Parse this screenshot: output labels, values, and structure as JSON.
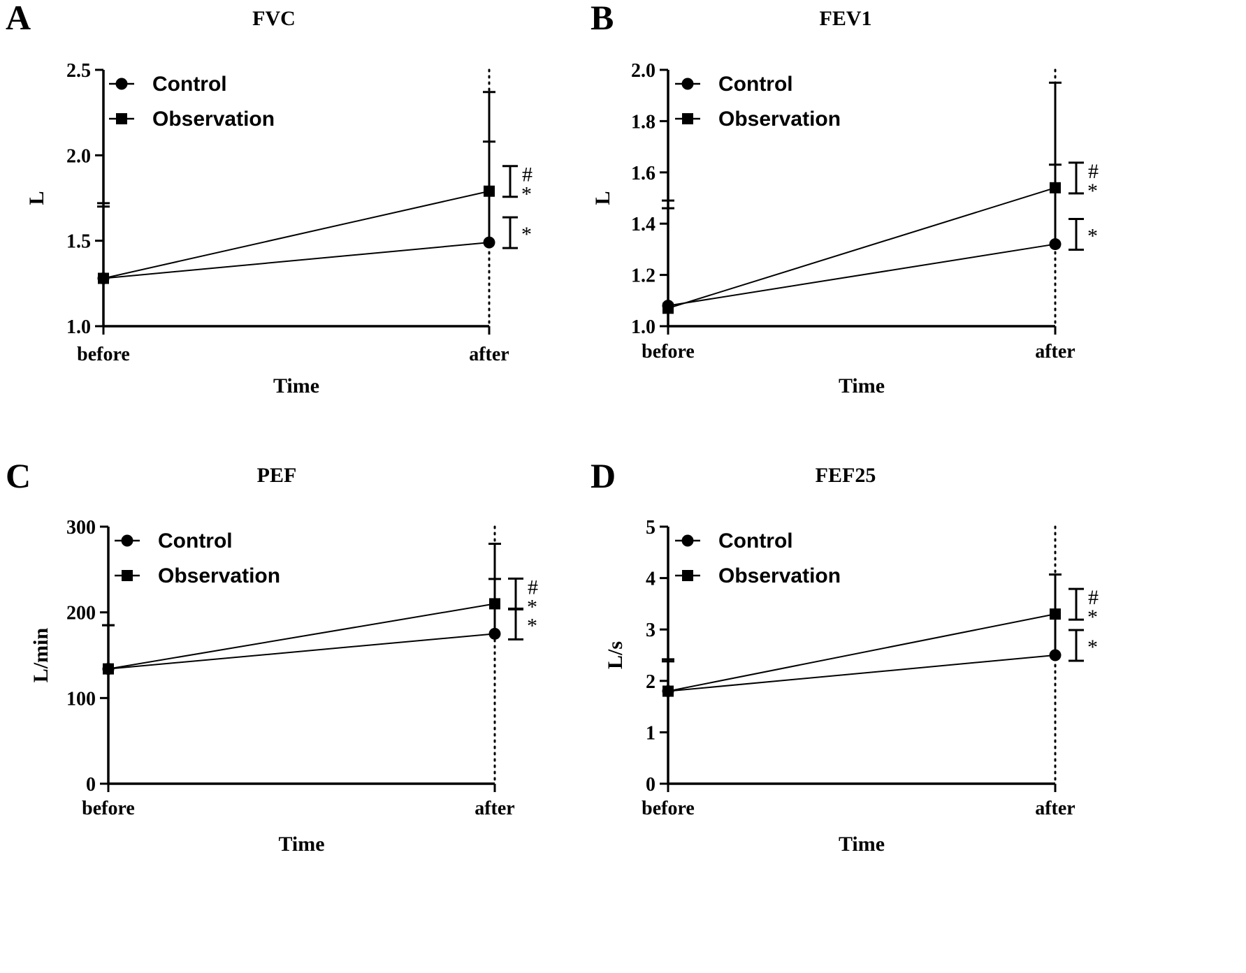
{
  "figure": {
    "x_axis_title": "Time",
    "categories": [
      "before",
      "after"
    ],
    "legend": {
      "control": "Control",
      "observation": "Observation"
    },
    "sig_marks": {
      "hash": "#",
      "star": "*"
    }
  },
  "chart_data": [
    {
      "panel": "A",
      "type": "line",
      "title": "FVC",
      "ylabel": "L",
      "xlabel": "Time",
      "categories": [
        "before",
        "after"
      ],
      "ylim": [
        1.0,
        2.5
      ],
      "yticks": [
        1.0,
        1.5,
        2.0,
        2.5
      ],
      "ytick_labels": [
        "1.0",
        "1.5",
        "2.0",
        "2.5"
      ],
      "series": [
        {
          "name": "Control",
          "marker": "circle",
          "values": [
            1.28,
            1.49
          ],
          "err_upper": [
            1.72,
            2.08
          ]
        },
        {
          "name": "Observation",
          "marker": "square",
          "values": [
            1.28,
            1.79
          ],
          "err_upper": [
            1.7,
            2.37
          ]
        }
      ],
      "annotations": [
        {
          "label": "*",
          "series": "Control"
        },
        {
          "label": "#*",
          "series": "Observation"
        }
      ]
    },
    {
      "panel": "B",
      "type": "line",
      "title": "FEV1",
      "ylabel": "L",
      "xlabel": "Time",
      "categories": [
        "before",
        "after"
      ],
      "ylim": [
        1.0,
        2.0
      ],
      "yticks": [
        1.0,
        1.2,
        1.4,
        1.6,
        1.8,
        2.0
      ],
      "ytick_labels": [
        "1.0",
        "1.2",
        "1.4",
        "1.6",
        "1.8",
        "2.0"
      ],
      "series": [
        {
          "name": "Control",
          "marker": "circle",
          "values": [
            1.08,
            1.32
          ],
          "err_upper": [
            1.49,
            1.63
          ]
        },
        {
          "name": "Observation",
          "marker": "square",
          "values": [
            1.07,
            1.54
          ],
          "err_upper": [
            1.46,
            1.95
          ]
        }
      ],
      "annotations": [
        {
          "label": "*",
          "series": "Control"
        },
        {
          "label": "#*",
          "series": "Observation"
        }
      ]
    },
    {
      "panel": "C",
      "type": "line",
      "title": "PEF",
      "ylabel": "L/min",
      "xlabel": "Time",
      "categories": [
        "before",
        "after"
      ],
      "ylim": [
        0,
        300
      ],
      "yticks": [
        0,
        100,
        200,
        300
      ],
      "ytick_labels": [
        "0",
        "100",
        "200",
        "300"
      ],
      "series": [
        {
          "name": "Control",
          "marker": "circle",
          "values": [
            134,
            175
          ],
          "err_upper": [
            185,
            239
          ]
        },
        {
          "name": "Observation",
          "marker": "square",
          "values": [
            134,
            210
          ],
          "err_upper": [
            185,
            280
          ]
        }
      ],
      "annotations": [
        {
          "label": "*",
          "series": "Control"
        },
        {
          "label": "#*",
          "series": "Observation"
        }
      ]
    },
    {
      "panel": "D",
      "type": "line",
      "title": "FEF25",
      "ylabel": "L/s",
      "xlabel": "Time",
      "categories": [
        "before",
        "after"
      ],
      "ylim": [
        0,
        5
      ],
      "yticks": [
        0,
        1,
        2,
        3,
        4,
        5
      ],
      "ytick_labels": [
        "0",
        "1",
        "2",
        "3",
        "4",
        "5"
      ],
      "series": [
        {
          "name": "Control",
          "marker": "circle",
          "values": [
            1.8,
            2.5
          ],
          "err_upper": [
            2.42,
            4.07
          ]
        },
        {
          "name": "Observation",
          "marker": "square",
          "values": [
            1.8,
            3.3
          ],
          "err_upper": [
            2.38,
            4.07
          ]
        }
      ],
      "annotations": [
        {
          "label": "*",
          "series": "Control"
        },
        {
          "label": "#*",
          "series": "Observation"
        }
      ]
    }
  ]
}
